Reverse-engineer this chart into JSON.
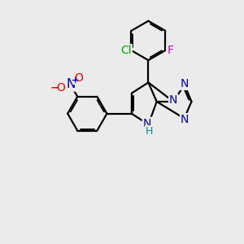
{
  "bg_color": "#ebebeb",
  "bond_color": "#000000",
  "bond_width": 1.6,
  "atom_colors": {
    "N": "#0000cc",
    "O": "#ff0000",
    "Cl": "#00aa00",
    "F": "#cc00cc",
    "H": "#008888",
    "C": "#000000"
  },
  "font_size": 10,
  "font_size_small": 9
}
